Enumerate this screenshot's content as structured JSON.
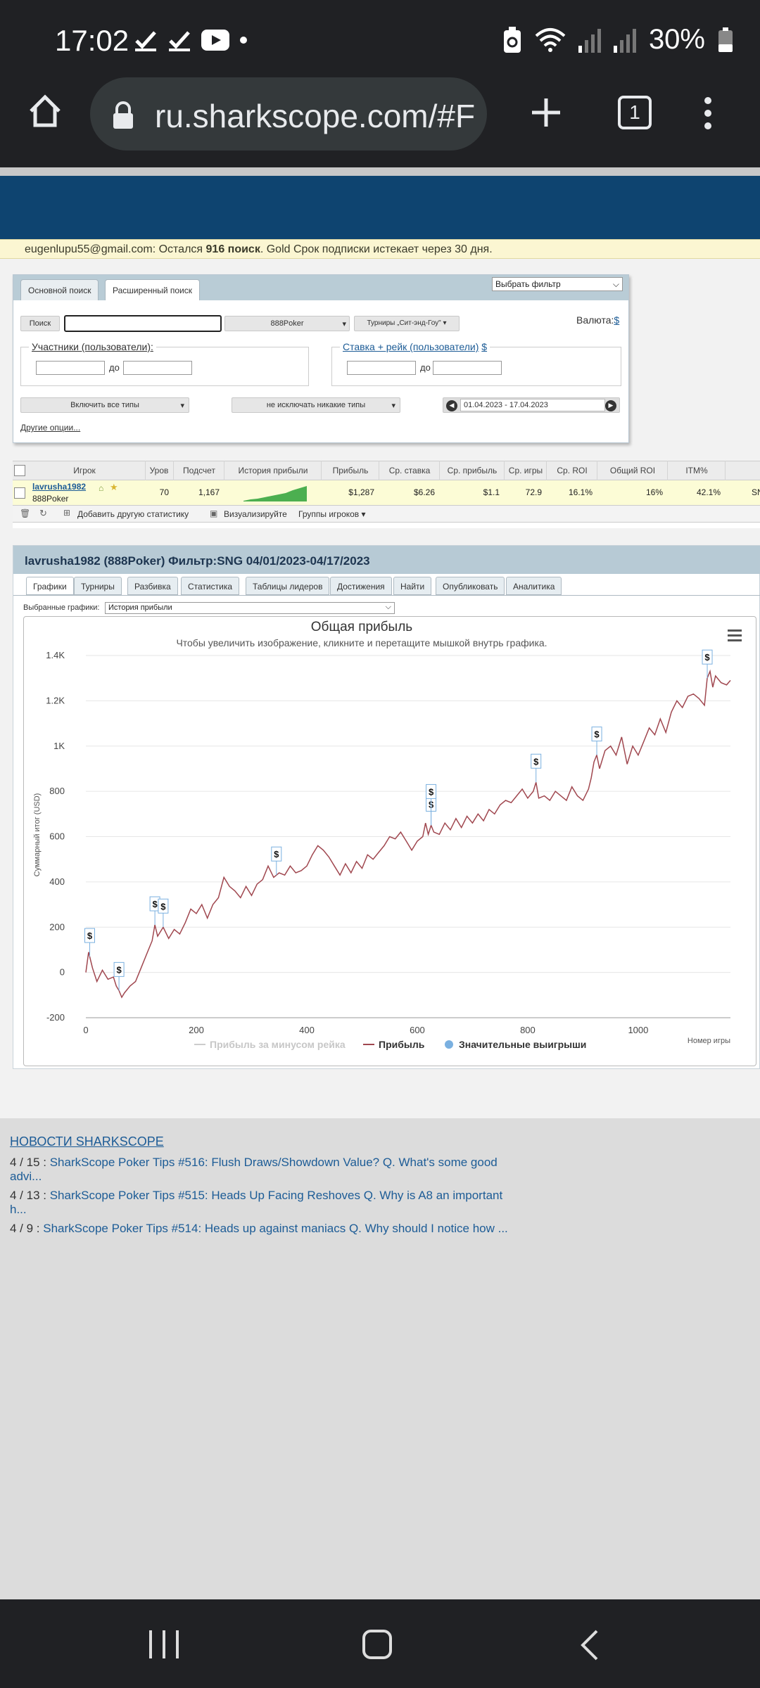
{
  "status_bar": {
    "time": "17:02",
    "battery": "30%"
  },
  "browser": {
    "url": "ru.sharkscope.com/#F",
    "tab_count": "1"
  },
  "notice": {
    "email": "eugenlupu55@gmail.com",
    "text_1": ": Остался ",
    "searches": "916 поиск",
    "text_2": ". Gold Срок подписки истекает через 30 дня."
  },
  "search": {
    "tabs": [
      "Основной поиск",
      "Расширенный поиск"
    ],
    "filter_select": "Выбрать фильтр",
    "search_button": "Поиск",
    "network_select": "888Poker",
    "tournaments_select": "Турниры „Сит-энд-Гоу\"",
    "currency_label": "Валюта:",
    "currency_symbol": "$",
    "participants_label": "Участники (пользователи):",
    "stake_label": "Ставка + рейк (пользователи)",
    "stake_currency": "$",
    "to_label": "до",
    "include_types": "Включить все типы",
    "exclude_types": "не исключать никакие типы",
    "date_range": "01.04.2023 - 17.04.2023",
    "other_options": "Другие опции..."
  },
  "results": {
    "columns": [
      "Игрок",
      "Уров",
      "Подсчет",
      "История прибыли",
      "Прибыль",
      "Ср. ставка",
      "Ср. прибыль",
      "Ср. игры",
      "Ср. ROI",
      "Общий ROI",
      "ITM%"
    ],
    "row": {
      "player": "lavrusha1982",
      "network": "888Poker",
      "level": "70",
      "count": "1,167",
      "profit": "$1,287",
      "avg_stake": "$6.26",
      "avg_profit": "$1.1",
      "avg_games": "72.9",
      "avg_roi": "16.1%",
      "total_roi": "16%",
      "itm": "42.1%",
      "extra": "SN"
    },
    "toolbar": {
      "add_stat": "Добавить другую статистику",
      "visualize": "Визуализируйте",
      "groups": "Группы игроков"
    }
  },
  "panel": {
    "title": "lavrusha1982 (888Poker) Фильтр:SNG 04/01/2023-04/17/2023",
    "tabs": [
      "Графики",
      "Турниры",
      "Разбивка",
      "Статистика",
      "Таблицы лидеров",
      "Достижения",
      "Найти",
      "Опубликовать",
      "Аналитика"
    ],
    "selected_label": "Выбранные графики:",
    "selected_value": "История прибыли"
  },
  "chart_data": {
    "type": "line",
    "title": "Общая прибыль",
    "subtitle": "Чтобы увеличить изображение, кликните и перетащите мышкой внутрь графика.",
    "ylabel": "Суммарный итог (USD)",
    "xlabel": "Номер игры",
    "xlim": [
      0,
      1167
    ],
    "ylim": [
      -200,
      1400
    ],
    "xticks": [
      "0",
      "200",
      "400",
      "600",
      "800",
      "1000"
    ],
    "yticks": [
      "-200",
      "0",
      "200",
      "400",
      "600",
      "800",
      "1K",
      "1.2K",
      "1.4K"
    ],
    "legend": [
      "Прибыль за минусом рейка",
      "Прибыль",
      "Значительные выигрыши"
    ],
    "series": [
      {
        "name": "Прибыль",
        "color": "#a0474f",
        "x": [
          0,
          5,
          12,
          20,
          30,
          40,
          50,
          55,
          60,
          65,
          70,
          80,
          90,
          100,
          110,
          120,
          125,
          130,
          140,
          150,
          160,
          170,
          180,
          190,
          200,
          210,
          220,
          230,
          240,
          250,
          260,
          270,
          280,
          290,
          300,
          310,
          320,
          330,
          340,
          350,
          360,
          370,
          380,
          390,
          400,
          410,
          420,
          430,
          440,
          450,
          460,
          470,
          480,
          490,
          500,
          510,
          520,
          530,
          540,
          550,
          560,
          570,
          580,
          590,
          600,
          610,
          615,
          620,
          625,
          630,
          640,
          650,
          660,
          670,
          680,
          690,
          700,
          710,
          720,
          730,
          740,
          750,
          760,
          770,
          780,
          790,
          800,
          810,
          815,
          820,
          830,
          840,
          850,
          860,
          870,
          880,
          890,
          900,
          910,
          915,
          920,
          925,
          930,
          940,
          950,
          960,
          970,
          980,
          990,
          1000,
          1010,
          1020,
          1030,
          1040,
          1050,
          1060,
          1070,
          1080,
          1090,
          1100,
          1110,
          1120,
          1125,
          1130,
          1135,
          1140,
          1150,
          1160,
          1167
        ],
        "y": [
          0,
          90,
          20,
          -40,
          10,
          -30,
          -20,
          -60,
          -80,
          -110,
          -90,
          -60,
          -40,
          20,
          80,
          140,
          210,
          160,
          200,
          150,
          190,
          170,
          220,
          280,
          260,
          300,
          240,
          300,
          330,
          420,
          380,
          360,
          330,
          380,
          340,
          390,
          410,
          470,
          420,
          440,
          430,
          470,
          440,
          450,
          470,
          520,
          560,
          540,
          510,
          470,
          430,
          480,
          440,
          490,
          460,
          520,
          500,
          530,
          560,
          600,
          590,
          620,
          580,
          540,
          580,
          600,
          660,
          610,
          650,
          620,
          610,
          660,
          630,
          680,
          640,
          690,
          660,
          700,
          670,
          720,
          700,
          740,
          760,
          750,
          780,
          810,
          770,
          800,
          840,
          770,
          780,
          760,
          800,
          780,
          760,
          820,
          780,
          760,
          810,
          860,
          930,
          960,
          900,
          980,
          1000,
          960,
          1040,
          920,
          1000,
          960,
          1020,
          1080,
          1050,
          1120,
          1060,
          1150,
          1200,
          1170,
          1220,
          1230,
          1210,
          1180,
          1300,
          1330,
          1260,
          1310,
          1280,
          1270,
          1290
        ]
      }
    ],
    "big_wins_x": [
      7,
      60,
      125,
      140,
      345,
      625,
      625,
      815,
      925,
      1125
    ]
  },
  "news": {
    "heading": "НОВОСТИ SHARKSCOPE",
    "items": [
      {
        "date": "4 / 15 :",
        "text": "SharkScope Poker Tips #516: Flush Draws/Showdown Value? Q. What's some good advi..."
      },
      {
        "date": "4 / 13 :",
        "text": "SharkScope Poker Tips #515: Heads Up Facing Reshoves Q. Why is A8 an important h..."
      },
      {
        "date": "4 / 9 :",
        "text": "SharkScope Poker Tips #514: Heads up against maniacs Q. Why should I notice how ..."
      }
    ]
  },
  "colors": {
    "banner": "#0e4470",
    "profit_line": "#a0474f",
    "legend_gray": "#cccccc",
    "big_win": "#7ab0e0"
  },
  "icons": [
    "home-icon",
    "lock-icon",
    "plus-icon",
    "tabs-icon",
    "more-vert-icon",
    "chart-menu-icon",
    "dollar-flag-icon"
  ]
}
